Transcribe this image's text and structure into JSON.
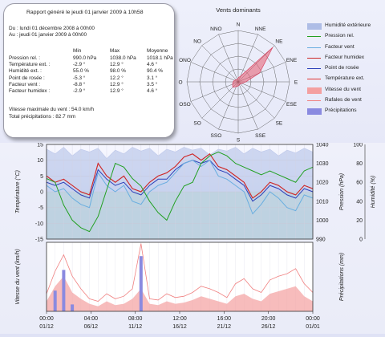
{
  "report": {
    "title": "Rapport généré le jeudi 01 janvier 2009 à 10h58",
    "period_from": "Du : lundi 01 décembre 2008 à 00h00",
    "period_to": "Au : jeudi 01 janvier 2009 à 00h00",
    "columns": [
      "Min",
      "Max",
      "Moyenne"
    ],
    "rows": [
      {
        "label": "Pression rel. :",
        "min": "990.0 hPa",
        "max": "1038.0 hPa",
        "avg": "1018.1 hPa"
      },
      {
        "label": "Température ext. :",
        "min": "-2.9 °",
        "max": "12.9 °",
        "avg": "4.6 °"
      },
      {
        "label": "Humidité ext. :",
        "min": "55.0 %",
        "max": "98.0 %",
        "avg": "90.4 %"
      },
      {
        "label": "Point de rosée :",
        "min": "-5.3 °",
        "max": "12.2 °",
        "avg": "3.1 °"
      },
      {
        "label": "Facteur vent :",
        "min": "-8.8 °",
        "max": "12.9 °",
        "avg": "3.5 °"
      },
      {
        "label": "Facteur humidex :",
        "min": "-2.9 °",
        "max": "12.9 °",
        "avg": "4.6 °"
      }
    ],
    "max_wind": "Vitesse maximale du vent : 54.0 km/h",
    "total_precip": "Total précipitations : 82.7 mm"
  },
  "wind_rose": {
    "title": "Vents dominants",
    "directions": [
      "N",
      "NNE",
      "NE",
      "ENE",
      "E",
      "ESE",
      "SE",
      "SSE",
      "S",
      "SSO",
      "SO",
      "OSO",
      "O",
      "ONO",
      "NO",
      "NNO"
    ],
    "frequencies": [
      0.08,
      0.12,
      0.95,
      0.45,
      0.15,
      0.08,
      0.06,
      0.06,
      0.08,
      0.1,
      0.15,
      0.12,
      0.1,
      0.08,
      0.06,
      0.05
    ]
  },
  "legend": [
    {
      "label": "Humidité extérieure",
      "color": "#aebde6",
      "kind": "area"
    },
    {
      "label": "Pression rel.",
      "color": "#22a022",
      "kind": "line"
    },
    {
      "label": "Facteur vent",
      "color": "#6aaee0",
      "kind": "line"
    },
    {
      "label": "Facteur humidex",
      "color": "#cc2a2a",
      "kind": "line"
    },
    {
      "label": "Point de rosée",
      "color": "#2b3fb8",
      "kind": "line"
    },
    {
      "label": "Température ext.",
      "color": "#e23434",
      "kind": "line"
    },
    {
      "label": "Vitesse du vent",
      "color": "#f4a0a0",
      "kind": "area"
    },
    {
      "label": "Rafales de vent",
      "color": "#f08080",
      "kind": "line"
    },
    {
      "label": "Précipitations",
      "color": "#8a8ae0",
      "kind": "area"
    }
  ],
  "chart_data": [
    {
      "type": "line",
      "ylabel_left": "Température (°C)",
      "ylabel_right1": "Pression (hPa)",
      "ylabel_right2": "Humidité (%)",
      "ylim": [
        -15,
        15
      ],
      "ylim_pressure": [
        990,
        1040
      ],
      "ylim_humidity": [
        0,
        100
      ],
      "yticks": [
        15,
        10,
        5,
        0,
        -5,
        -10,
        -15
      ],
      "yticks_pressure": [
        1040,
        1030,
        1020,
        1010,
        1000,
        990
      ],
      "yticks_humidity": [
        100,
        80,
        60,
        40,
        20,
        0
      ],
      "x_range_days": [
        0,
        31
      ],
      "series": [
        {
          "name": "Température ext.",
          "color": "#e23434",
          "x": [
            0,
            1,
            2,
            3,
            4,
            5,
            6,
            7,
            8,
            9,
            10,
            11,
            12,
            13,
            14,
            15,
            16,
            17,
            18,
            19,
            20,
            21,
            22,
            23,
            24,
            25,
            26,
            27,
            28,
            29,
            30,
            31
          ],
          "values": [
            5,
            3,
            4,
            2,
            0,
            -1,
            9,
            5,
            3,
            5,
            1,
            0,
            3,
            5,
            6,
            8,
            11,
            12,
            10,
            12,
            8,
            7,
            5,
            3,
            -2,
            0,
            3,
            2,
            0,
            -1,
            2,
            1
          ]
        },
        {
          "name": "Point de rosée",
          "color": "#2b3fb8",
          "x": [
            0,
            1,
            2,
            3,
            4,
            5,
            6,
            7,
            8,
            9,
            10,
            11,
            12,
            13,
            14,
            15,
            16,
            17,
            18,
            19,
            20,
            21,
            22,
            23,
            24,
            25,
            26,
            27,
            28,
            29,
            30,
            31
          ],
          "values": [
            3,
            2,
            3,
            1,
            -1,
            -2,
            7,
            4,
            2,
            3,
            0,
            -1,
            2,
            4,
            4,
            7,
            9,
            10,
            9,
            10,
            7,
            6,
            4,
            2,
            -3,
            -1,
            2,
            1,
            -1,
            -2,
            1,
            0
          ]
        },
        {
          "name": "Facteur vent",
          "color": "#6aaee0",
          "x": [
            0,
            1,
            2,
            3,
            4,
            5,
            6,
            7,
            8,
            9,
            10,
            11,
            12,
            13,
            14,
            15,
            16,
            17,
            18,
            19,
            20,
            21,
            22,
            23,
            24,
            25,
            26,
            27,
            28,
            29,
            30,
            31
          ],
          "values": [
            2,
            0,
            1,
            -2,
            -4,
            -5,
            6,
            2,
            0,
            2,
            -3,
            -4,
            0,
            2,
            3,
            6,
            9,
            10,
            8,
            10,
            5,
            4,
            2,
            0,
            -7,
            -4,
            0,
            -2,
            -5,
            -6,
            -1,
            -2
          ]
        },
        {
          "name": "Facteur humidex",
          "color": "#cc2a2a",
          "x": [
            0,
            1,
            2,
            3,
            4,
            5,
            6,
            7,
            8,
            9,
            10,
            11,
            12,
            13,
            14,
            15,
            16,
            17,
            18,
            19,
            20,
            21,
            22,
            23,
            24,
            25,
            26,
            27,
            28,
            29,
            30,
            31
          ],
          "values": [
            5,
            3,
            4,
            2,
            0,
            -1,
            9,
            5,
            3,
            5,
            1,
            0,
            3,
            5,
            6,
            8,
            11,
            12,
            10,
            12,
            8,
            7,
            5,
            3,
            -2,
            0,
            3,
            2,
            0,
            -1,
            2,
            1
          ]
        },
        {
          "name": "Pression rel.",
          "color": "#22a022",
          "axis": "pressure",
          "x": [
            0,
            1,
            2,
            3,
            4,
            5,
            6,
            7,
            8,
            9,
            10,
            11,
            12,
            13,
            14,
            15,
            16,
            17,
            18,
            19,
            20,
            21,
            22,
            23,
            24,
            25,
            26,
            27,
            28,
            29,
            30,
            31
          ],
          "values": [
            1022,
            1020,
            1008,
            1000,
            996,
            994,
            1002,
            1016,
            1030,
            1028,
            1022,
            1018,
            1010,
            1004,
            1000,
            1010,
            1018,
            1020,
            1030,
            1034,
            1036,
            1034,
            1030,
            1028,
            1026,
            1024,
            1026,
            1024,
            1022,
            1020,
            1026,
            1028
          ]
        },
        {
          "name": "Humidité extérieure",
          "color": "#aebde6",
          "axis": "humidity",
          "x": [
            0,
            1,
            2,
            3,
            4,
            5,
            6,
            7,
            8,
            9,
            10,
            11,
            12,
            13,
            14,
            15,
            16,
            17,
            18,
            19,
            20,
            21,
            22,
            23,
            24,
            25,
            26,
            27,
            28,
            29,
            30,
            31
          ],
          "values": [
            95,
            90,
            97,
            88,
            95,
            92,
            96,
            85,
            94,
            90,
            97,
            93,
            96,
            88,
            95,
            92,
            97,
            94,
            96,
            89,
            95,
            93,
            97,
            90,
            96,
            92,
            95,
            88,
            94,
            91,
            96,
            92
          ]
        }
      ]
    },
    {
      "type": "area",
      "ylabel_left": "Vitesse du vent (km/h)",
      "ylabel_right": "Précipitations (mm)",
      "xticks": [
        "00:00",
        "04:00",
        "08:00",
        "12:00",
        "16:00",
        "20:00",
        "00:00"
      ],
      "xticks_dates": [
        "01/12",
        "06/12",
        "11/12",
        "16/12",
        "21/12",
        "26/12",
        "01/01"
      ],
      "x_range_days": [
        0,
        31
      ],
      "ylim": [
        0,
        55
      ],
      "ylim_precip": [
        0,
        10
      ],
      "series": [
        {
          "name": "Vitesse du vent",
          "color": "#f4a0a0",
          "x": [
            0,
            1,
            2,
            3,
            4,
            5,
            6,
            7,
            8,
            9,
            10,
            11,
            12,
            13,
            14,
            15,
            16,
            17,
            18,
            19,
            20,
            21,
            22,
            23,
            24,
            25,
            26,
            27,
            28,
            29,
            30,
            31
          ],
          "values": [
            8,
            20,
            28,
            15,
            10,
            6,
            4,
            8,
            5,
            6,
            10,
            18,
            6,
            5,
            8,
            6,
            7,
            9,
            12,
            10,
            8,
            6,
            12,
            14,
            10,
            8,
            14,
            16,
            18,
            20,
            12,
            8
          ]
        },
        {
          "name": "Rafales de vent",
          "color": "#f08080",
          "x": [
            0,
            1,
            2,
            3,
            4,
            5,
            6,
            7,
            8,
            9,
            10,
            11,
            12,
            13,
            14,
            15,
            16,
            17,
            18,
            19,
            20,
            21,
            22,
            23,
            24,
            25,
            26,
            27,
            28,
            29,
            30,
            31
          ],
          "values": [
            14,
            32,
            45,
            28,
            18,
            10,
            8,
            14,
            10,
            12,
            18,
            54,
            10,
            9,
            14,
            11,
            12,
            15,
            20,
            18,
            15,
            11,
            22,
            26,
            18,
            15,
            25,
            28,
            30,
            34,
            22,
            15
          ]
        },
        {
          "name": "Précipitations",
          "color": "#8a8ae0",
          "axis": "precip",
          "x": [
            0,
            1,
            2,
            3,
            4,
            5,
            6,
            7,
            8,
            9,
            10,
            11,
            12,
            13,
            14,
            15,
            16,
            17,
            18,
            19,
            20,
            21,
            22,
            23,
            24,
            25,
            26,
            27,
            28,
            29,
            30,
            31
          ],
          "values": [
            0,
            3,
            6,
            1,
            0,
            0,
            0,
            0,
            0,
            0,
            0,
            8,
            0,
            0,
            0,
            0,
            0,
            0,
            0,
            0,
            0,
            0,
            0,
            0,
            0,
            0,
            0,
            0,
            0,
            0,
            0,
            0
          ]
        }
      ]
    }
  ]
}
